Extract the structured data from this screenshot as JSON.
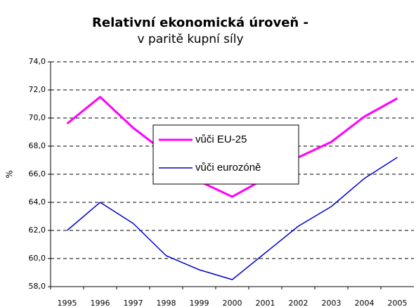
{
  "chart_data": {
    "type": "line",
    "title": "Relativní ekonomická úroveň -",
    "subtitle": "v paritě kupní síly",
    "y_label": "%",
    "categories": [
      "1995",
      "1996",
      "1997",
      "1998",
      "1999",
      "2000",
      "2001",
      "2002",
      "2003",
      "2004",
      "2005"
    ],
    "series": [
      {
        "name": "vůči EU-25",
        "color": "#ff00ff",
        "values": [
          69.6,
          71.5,
          69.3,
          67.5,
          65.5,
          64.4,
          65.7,
          67.2,
          68.3,
          70.1,
          71.4
        ]
      },
      {
        "name": "vůči eurozóně",
        "color": "#0000cc",
        "values": [
          62.0,
          64.0,
          62.5,
          60.2,
          59.2,
          58.5,
          60.4,
          62.3,
          63.7,
          65.7,
          67.2
        ]
      }
    ],
    "ylim": [
      58,
      74
    ],
    "yticks": [
      {
        "value": 58,
        "label": "58,0"
      },
      {
        "value": 60,
        "label": "60,0"
      },
      {
        "value": 62,
        "label": "62,0"
      },
      {
        "value": 64,
        "label": "64,0"
      },
      {
        "value": 66,
        "label": "66,0"
      },
      {
        "value": 68,
        "label": "68,0"
      },
      {
        "value": 70,
        "label": "70,0"
      },
      {
        "value": 72,
        "label": "72,0"
      },
      {
        "value": 74,
        "label": "74,0"
      }
    ],
    "grid": true,
    "legend": "center"
  }
}
